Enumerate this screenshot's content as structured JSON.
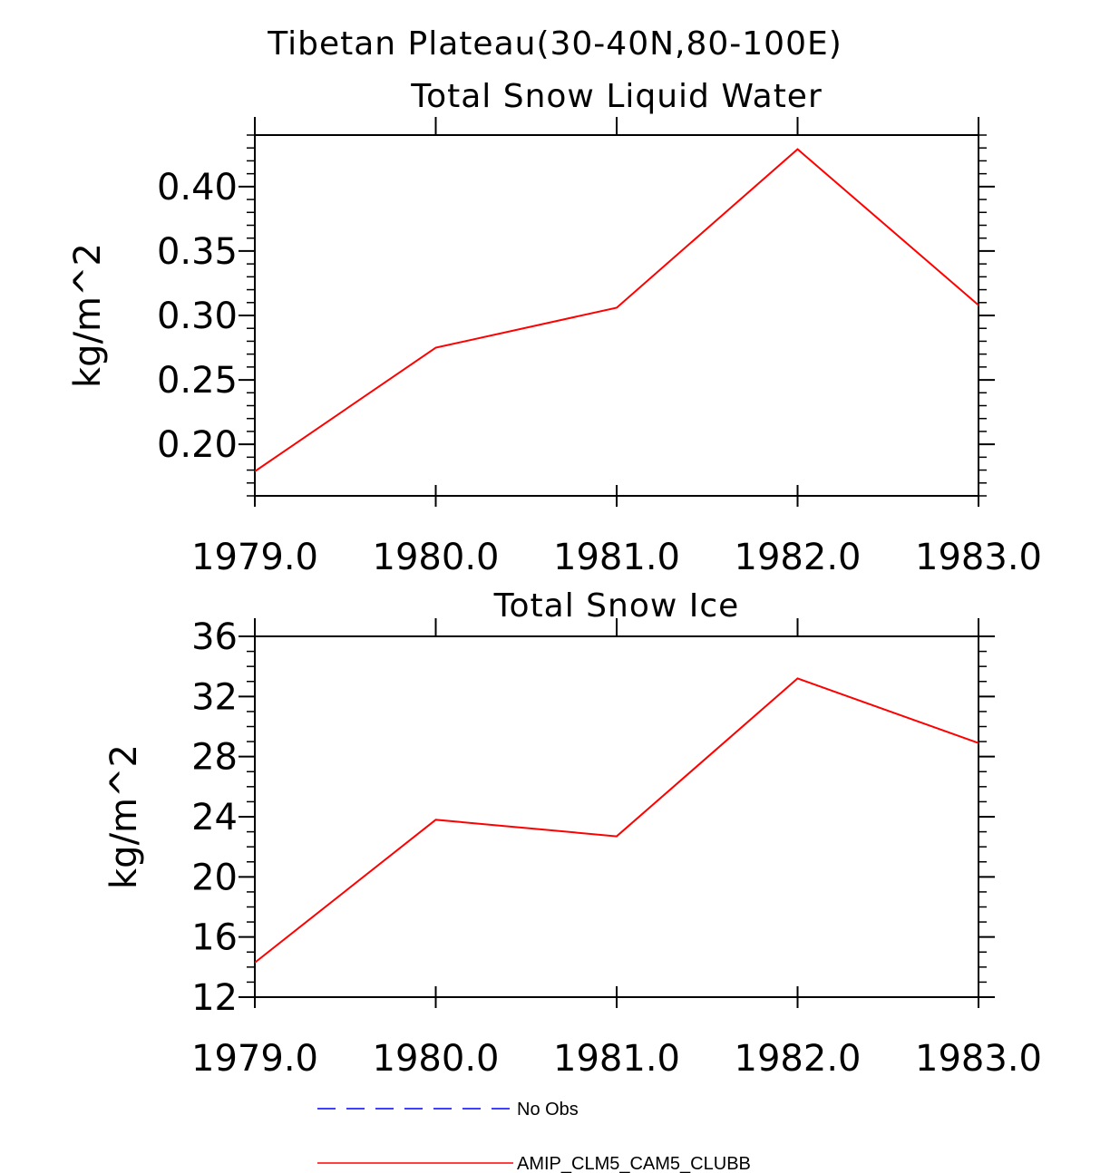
{
  "main_title": "Tibetan Plateau(30-40N,80-100E)",
  "chart_data": [
    {
      "type": "line",
      "title": "Total Snow Liquid Water",
      "xlabel": "",
      "ylabel": "kg/m^2",
      "xlim": [
        1979,
        1983
      ],
      "ylim": [
        0.16,
        0.44
      ],
      "x": [
        1979,
        1980,
        1981,
        1982,
        1983
      ],
      "xtick_labels": [
        "1979.0",
        "1980.0",
        "1981.0",
        "1982.0",
        "1983.0"
      ],
      "yticks": [
        0.2,
        0.25,
        0.3,
        0.35,
        0.4
      ],
      "ytick_labels": [
        "0.20",
        "0.25",
        "0.30",
        "0.35",
        "0.40"
      ],
      "series": [
        {
          "name": "AMIP_CLM5_CAM5_CLUBB",
          "color": "#ff0000",
          "values": [
            0.179,
            0.275,
            0.306,
            0.429,
            0.308
          ]
        }
      ]
    },
    {
      "type": "line",
      "title": "Total Snow Ice",
      "xlabel": "",
      "ylabel": "kg/m^2",
      "xlim": [
        1979,
        1983
      ],
      "ylim": [
        12,
        36
      ],
      "x": [
        1979,
        1980,
        1981,
        1982,
        1983
      ],
      "xtick_labels": [
        "1979.0",
        "1980.0",
        "1981.0",
        "1982.0",
        "1983.0"
      ],
      "yticks": [
        12,
        16,
        20,
        24,
        28,
        32,
        36
      ],
      "ytick_labels": [
        "12",
        "16",
        "20",
        "24",
        "28",
        "32",
        "36"
      ],
      "series": [
        {
          "name": "AMIP_CLM5_CAM5_CLUBB",
          "color": "#ff0000",
          "values": [
            14.3,
            23.8,
            22.7,
            33.2,
            28.9
          ]
        }
      ]
    }
  ],
  "legend": {
    "placement": "bottom-center",
    "items": [
      {
        "label": "No Obs",
        "color": "#0000ff",
        "style": "dashed"
      },
      {
        "label": "AMIP_CLM5_CAM5_CLUBB",
        "color": "#ff0000",
        "style": "solid"
      }
    ]
  }
}
